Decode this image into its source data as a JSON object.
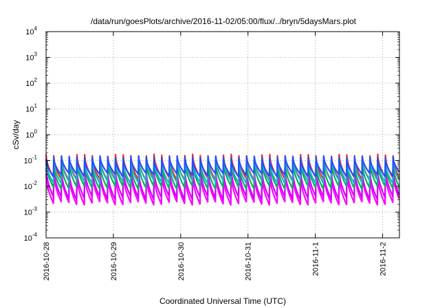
{
  "chart_data": {
    "type": "line",
    "title": "/data/run/goesPlots/archive/2016-11-02/05:00/flux/../bryn/5daysMars.plot",
    "xlabel": "Coordinated Universal Time (UTC)",
    "ylabel": "cSv/day",
    "y_scale": "log",
    "ylim_exponents": [
      -4,
      4
    ],
    "y_ticks": [
      {
        "base": "10",
        "exp": "4"
      },
      {
        "base": "10",
        "exp": "3"
      },
      {
        "base": "10",
        "exp": "2"
      },
      {
        "base": "10",
        "exp": "1"
      },
      {
        "base": "10",
        "exp": "0"
      },
      {
        "base": "10",
        "exp": "-1"
      },
      {
        "base": "10",
        "exp": "-2"
      },
      {
        "base": "10",
        "exp": "-3"
      },
      {
        "base": "10",
        "exp": "-4"
      }
    ],
    "x_range": [
      "2016-10-28T00:00",
      "2016-11-02T06:00"
    ],
    "x_ticks": [
      "2016-10-28",
      "2016-10-29",
      "2016-10-30",
      "2016-10-31",
      "2016-11-1",
      "2016-11-2"
    ],
    "grid": true,
    "sawtooth_period_hours": 2.75,
    "series": [
      {
        "color": "#ff00ff",
        "peak": 0.03,
        "trough": 0.0022
      },
      {
        "color": "#d400ff",
        "peak": 0.045,
        "trough": 0.0035
      },
      {
        "color": "#ff2222",
        "peak": 0.15,
        "trough": 0.02
      },
      {
        "color": "#00b060",
        "peak": 0.08,
        "trough": 0.009
      },
      {
        "color": "#20b0c0",
        "peak": 0.11,
        "trough": 0.015
      },
      {
        "color": "#2050ff",
        "peak": 0.13,
        "trough": 0.028
      }
    ]
  }
}
